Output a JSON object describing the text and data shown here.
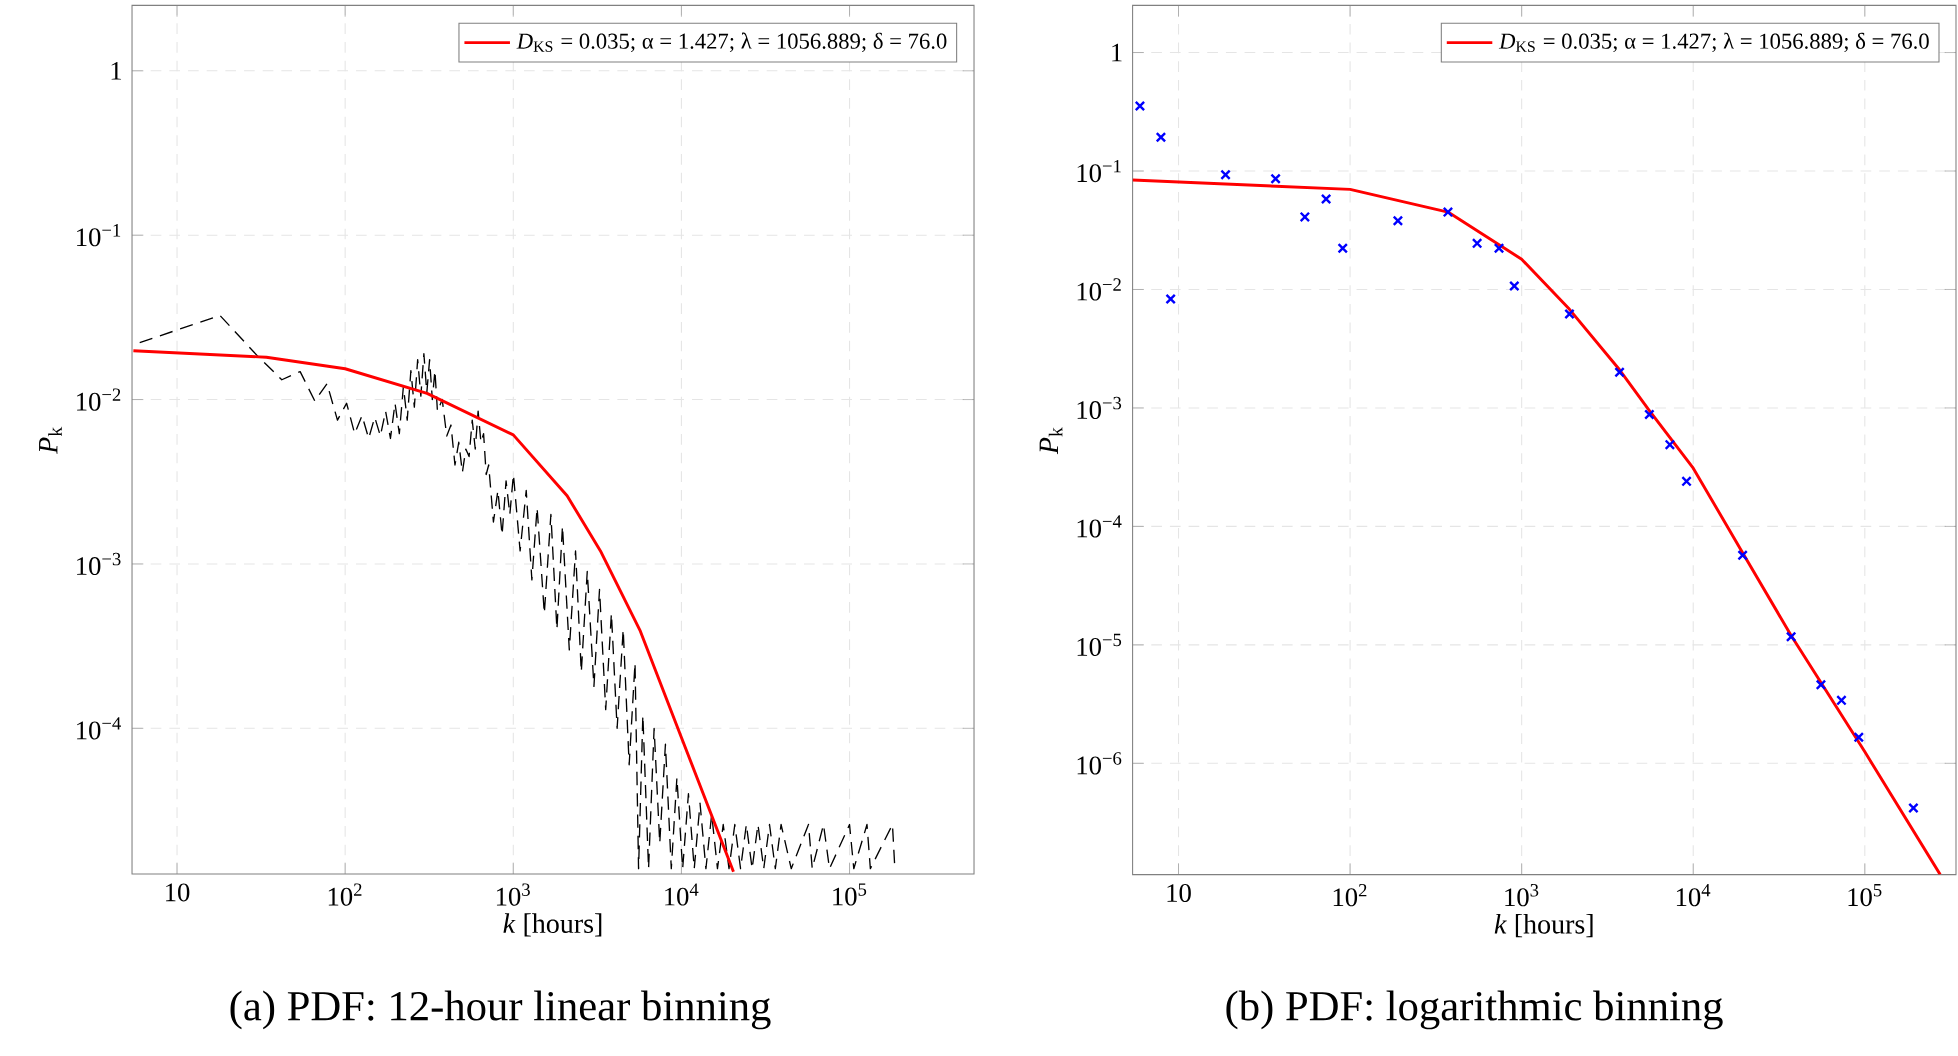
{
  "chart_data": [
    {
      "type": "line",
      "log": "xy",
      "grid": true,
      "legend": "top right",
      "xlabel": "*k* [hours]",
      "ylabel": "*P*$_{k}$",
      "annotations": [
        "(a) PDF: 12-hour linear binning"
      ],
      "xlim": [
        5.4,
        550000
      ],
      "ylim": [
        1.3e-05,
        2.5
      ],
      "xticks": [
        10,
        {
          "value": 100,
          "label": "10$^{2}$"
        },
        {
          "value": 1000,
          "label": "10$^{3}$"
        },
        {
          "value": 10000,
          "label": "10$^{4}$"
        },
        {
          "value": 100000,
          "label": "10$^{5}$"
        }
      ],
      "yticks": [
        1,
        {
          "value": 0.1,
          "label": "10$^{−1}$"
        },
        {
          "value": 0.01,
          "label": "10$^{−2}$"
        },
        {
          "value": 0.001,
          "label": "10$^{−3}$"
        },
        {
          "value": 0.0001,
          "label": "10$^{−4}$"
        }
      ],
      "series": [
        {
          "color": "#000000",
          "line_style": "dashed",
          "marker": "none",
          "x": [
            6,
            18,
            30,
            42,
            54,
            66,
            78,
            90,
            102,
            114,
            126,
            138,
            150,
            162,
            174,
            186,
            198,
            210,
            222,
            234,
            246,
            258,
            270,
            282,
            294,
            306,
            318,
            330,
            342,
            354,
            378,
            402,
            426,
            450,
            474,
            498,
            522,
            546,
            570,
            594,
            618,
            642,
            666,
            690,
            714,
            762,
            810,
            858,
            906,
            954,
            1002,
            1098,
            1194,
            1290,
            1386,
            1530,
            1674,
            1818,
            1962,
            2154,
            2346,
            2538,
            2754,
            3018,
            3258,
            3546,
            3834,
            4146,
            4506,
            4890,
            5298,
            5562,
            5898,
            6378,
            6882,
            7434,
            8034,
            8706,
            9402,
            10170,
            11010,
            11922,
            12906,
            13986,
            15138,
            16386,
            17730,
            19194,
            20778,
            22482,
            24330,
            26346,
            28530,
            30882,
            33426,
            36186,
            39162,
            45000,
            57000,
            60000,
            70000,
            76000,
            100000,
            106000,
            127000,
            133000,
            180000,
            186000
          ],
          "values": [
            0.0222,
            0.0325,
            0.0185,
            0.0132,
            0.0148,
            0.0098,
            0.0125,
            0.0075,
            0.0095,
            0.0062,
            0.008,
            0.0058,
            0.0078,
            0.006,
            0.0085,
            0.0058,
            0.0095,
            0.0062,
            0.012,
            0.0075,
            0.015,
            0.009,
            0.0175,
            0.0105,
            0.019,
            0.011,
            0.0175,
            0.01,
            0.015,
            0.0085,
            0.01,
            0.006,
            0.007,
            0.004,
            0.0055,
            0.0036,
            0.005,
            0.0045,
            0.0075,
            0.005,
            0.0085,
            0.0055,
            0.0062,
            0.0035,
            0.004,
            0.0018,
            0.0028,
            0.0015,
            0.0032,
            0.002,
            0.0035,
            0.0012,
            0.0028,
            0.0008,
            0.0022,
            0.0005,
            0.002,
            0.0004,
            0.0017,
            0.0003,
            0.0012,
            0.00022,
            0.0009,
            0.00018,
            0.0007,
            0.00013,
            0.0005,
            0.0001,
            0.0004,
            6e-05,
            0.00025,
            1.4e-05,
            0.00012,
            1.4e-05,
            0.0001,
            2e-05,
            8e-05,
            1.4e-05,
            5e-05,
            1.4e-05,
            4e-05,
            1.4e-05,
            3.5e-05,
            1.4e-05,
            3e-05,
            1.4e-05,
            2.6e-05,
            1.4e-05,
            2.6e-05,
            1.4e-05,
            2.6e-05,
            1.4e-05,
            2.6e-05,
            1.4e-05,
            2.6e-05,
            1.4e-05,
            2.6e-05,
            1.4e-05,
            2.6e-05,
            1.4e-05,
            2.6e-05,
            1.4e-05,
            2.6e-05,
            1.4e-05,
            2.6e-05,
            1.4e-05,
            2.6e-05,
            1.4e-05
          ]
        },
        {
          "name": "*D*$_{KS}$ = 0.035; α = 1.427; λ = 1056.889; δ = 76.0",
          "color": "#ff0000",
          "line_style": "solid",
          "marker": "none",
          "x": [
            5.5,
            34,
            100,
            307,
            1000,
            2090,
            3300,
            5700,
            10000,
            20400
          ],
          "values": [
            0.0198,
            0.0181,
            0.0154,
            0.0109,
            0.0061,
            0.0026,
            0.0012,
            0.00039,
            8.8e-05,
            1.34e-05
          ]
        }
      ]
    },
    {
      "type": "line",
      "log": "xy",
      "grid": true,
      "legend": "top right",
      "xlabel": "*k* [hours]",
      "ylabel": "*P*$_{k}$",
      "annotations": [
        "(b) PDF: logarithmic binning"
      ],
      "xlim": [
        5.4,
        340000
      ],
      "ylim": [
        1.15e-07,
        2.5
      ],
      "xticks": [
        10,
        {
          "value": 100,
          "label": "10$^{2}$"
        },
        {
          "value": 1000,
          "label": "10$^{3}$"
        },
        {
          "value": 10000,
          "label": "10$^{4}$"
        },
        {
          "value": 100000,
          "label": "10$^{5}$"
        }
      ],
      "yticks": [
        1,
        {
          "value": 0.1,
          "label": "10$^{−1}$"
        },
        {
          "value": 0.01,
          "label": "10$^{−2}$"
        },
        {
          "value": 0.001,
          "label": "10$^{−3}$"
        },
        {
          "value": 0.0001,
          "label": "10$^{−4}$"
        },
        {
          "value": 1e-05,
          "label": "10$^{−5}$"
        },
        {
          "value": 1e-06,
          "label": "10$^{−6}$"
        }
      ],
      "series": [
        {
          "type": "scatter",
          "color": "#0000ff",
          "marker": "cross",
          "x": [
            5.96,
            7.9,
            9.0,
            18.8,
            36.8,
            54.5,
            72.5,
            90.6,
            190,
            372,
            550,
            738,
            906,
            1900,
            3720,
            5550,
            7310,
            9140,
            19400,
            37200,
            55500,
            73100,
            92200,
            192000
          ],
          "values": [
            0.354,
            0.193,
            0.0083,
            0.093,
            0.086,
            0.041,
            0.058,
            0.0223,
            0.038,
            0.045,
            0.0245,
            0.0223,
            0.0107,
            0.0062,
            0.002,
            0.00088,
            0.00049,
            0.00024,
            5.7e-05,
            1.17e-05,
            4.6e-06,
            3.4e-06,
            1.66e-06,
            4.2e-07
          ]
        },
        {
          "name": "*D*$_{KS}$ = 0.035; α = 1.427; λ = 1056.889; δ = 76.0",
          "color": "#ff0000",
          "line_style": "solid",
          "marker": "none",
          "x": [
            5.4,
            100,
            372,
            1000,
            1900,
            3720,
            5550,
            10000,
            19400,
            37200,
            100000,
            275000
          ],
          "values": [
            0.084,
            0.07,
            0.045,
            0.018,
            0.0068,
            0.0021,
            0.00095,
            0.00031,
            6e-05,
            1.2e-05,
            1.25e-06,
            1.15e-07
          ]
        }
      ]
    }
  ]
}
